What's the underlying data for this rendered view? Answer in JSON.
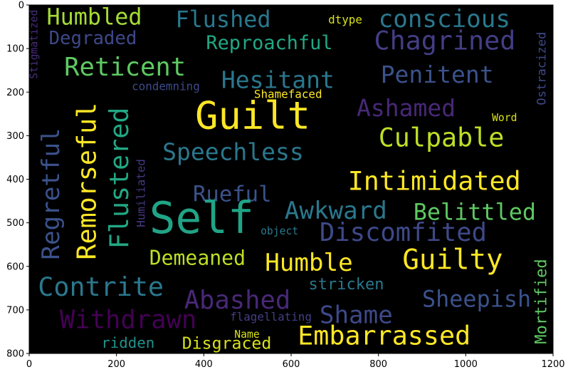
{
  "chart_data": {
    "type": "image",
    "title": "",
    "xlabel": "",
    "ylabel": "",
    "xlim": [
      0,
      1200
    ],
    "ylim": [
      800,
      0
    ],
    "xticks": [
      "0",
      "200",
      "400",
      "600",
      "800",
      "1000",
      "1200"
    ],
    "yticks": [
      "0",
      "100",
      "200",
      "300",
      "400",
      "500",
      "600",
      "700",
      "800"
    ],
    "background_color": "#000000",
    "words": [
      {
        "text": "Humbled",
        "x": 40,
        "y": 7,
        "size": 52,
        "color": "#a5db36",
        "rotate": 0
      },
      {
        "text": "Flushed",
        "x": 335,
        "y": 13,
        "size": 52,
        "color": "#2a788e",
        "rotate": 0
      },
      {
        "text": "dtype",
        "x": 685,
        "y": 23,
        "size": 26,
        "color": "#d8e219",
        "rotate": 0
      },
      {
        "text": "conscious",
        "x": 800,
        "y": 10,
        "size": 56,
        "color": "#2a788e",
        "rotate": 0
      },
      {
        "text": "Degraded",
        "x": 45,
        "y": 60,
        "size": 42,
        "color": "#3e4989",
        "rotate": 0
      },
      {
        "text": "Reproachful",
        "x": 405,
        "y": 70,
        "size": 44,
        "color": "#22a884",
        "rotate": 0
      },
      {
        "text": "Chagrined",
        "x": 790,
        "y": 58,
        "size": 60,
        "color": "#433e85",
        "rotate": 0
      },
      {
        "text": "Stigmatized",
        "x": 2,
        "y": 170,
        "size": 24,
        "color": "#472c7a",
        "rotate": -90
      },
      {
        "text": "Ostracized",
        "x": 1163,
        "y": 230,
        "size": 28,
        "color": "#3e4989",
        "rotate": -90
      },
      {
        "text": "Reticent",
        "x": 80,
        "y": 120,
        "size": 58,
        "color": "#5ec962",
        "rotate": 0
      },
      {
        "text": "Hesitant",
        "x": 440,
        "y": 150,
        "size": 54,
        "color": "#2a788e",
        "rotate": 0
      },
      {
        "text": "Penitent",
        "x": 805,
        "y": 138,
        "size": 54,
        "color": "#3b528b",
        "rotate": 0
      },
      {
        "text": "condemning",
        "x": 235,
        "y": 176,
        "size": 26,
        "color": "#3e4989",
        "rotate": 0
      },
      {
        "text": "Shamefaced",
        "x": 515,
        "y": 194,
        "size": 26,
        "color": "#fde725",
        "rotate": 0
      },
      {
        "text": "Regretful",
        "x": 28,
        "y": 585,
        "size": 56,
        "color": "#3b528b",
        "rotate": -90
      },
      {
        "text": "Remorseful",
        "x": 108,
        "y": 585,
        "size": 60,
        "color": "#fde725",
        "rotate": -90
      },
      {
        "text": "Flustered",
        "x": 182,
        "y": 560,
        "size": 60,
        "color": "#22a884",
        "rotate": -90
      },
      {
        "text": "Humiliated",
        "x": 245,
        "y": 510,
        "size": 26,
        "color": "#443983",
        "rotate": -90
      },
      {
        "text": "Guilt",
        "x": 380,
        "y": 218,
        "size": 88,
        "color": "#fde725",
        "rotate": 0
      },
      {
        "text": "Ashamed",
        "x": 750,
        "y": 215,
        "size": 54,
        "color": "#482878",
        "rotate": 0
      },
      {
        "text": "Word",
        "x": 1060,
        "y": 250,
        "size": 24,
        "color": "#d8e219",
        "rotate": 0
      },
      {
        "text": "Culpable",
        "x": 800,
        "y": 280,
        "size": 60,
        "color": "#bddf26",
        "rotate": 0
      },
      {
        "text": "Speechless",
        "x": 305,
        "y": 315,
        "size": 54,
        "color": "#2a788e",
        "rotate": 0
      },
      {
        "text": "Intimidated",
        "x": 730,
        "y": 380,
        "size": 60,
        "color": "#fde725",
        "rotate": 0
      },
      {
        "text": "Rueful",
        "x": 375,
        "y": 415,
        "size": 50,
        "color": "#3b528b",
        "rotate": 0
      },
      {
        "text": "Awkward",
        "x": 585,
        "y": 450,
        "size": 56,
        "color": "#2a788e",
        "rotate": 0
      },
      {
        "text": "Belittled",
        "x": 880,
        "y": 455,
        "size": 52,
        "color": "#5ec962",
        "rotate": 0
      },
      {
        "text": "Self",
        "x": 275,
        "y": 450,
        "size": 100,
        "color": "#20a486",
        "rotate": 0
      },
      {
        "text": "object",
        "x": 530,
        "y": 510,
        "size": 24,
        "color": "#2a788e",
        "rotate": 0
      },
      {
        "text": "Discomfited",
        "x": 665,
        "y": 500,
        "size": 58,
        "color": "#3e4989",
        "rotate": 0
      },
      {
        "text": "Demeaned",
        "x": 275,
        "y": 562,
        "size": 46,
        "color": "#bddf26",
        "rotate": 0
      },
      {
        "text": "Humble",
        "x": 540,
        "y": 570,
        "size": 56,
        "color": "#fde725",
        "rotate": 0
      },
      {
        "text": "Guilty",
        "x": 855,
        "y": 560,
        "size": 64,
        "color": "#fde725",
        "rotate": 0
      },
      {
        "text": "Mortified",
        "x": 1160,
        "y": 778,
        "size": 36,
        "color": "#5ec962",
        "rotate": -90
      },
      {
        "text": "Contrite",
        "x": 20,
        "y": 623,
        "size": 60,
        "color": "#2a788e",
        "rotate": 0
      },
      {
        "text": "stricken",
        "x": 640,
        "y": 628,
        "size": 36,
        "color": "#2a788e",
        "rotate": 0
      },
      {
        "text": "Abashed",
        "x": 355,
        "y": 655,
        "size": 58,
        "color": "#482878",
        "rotate": 0
      },
      {
        "text": "Sheepish",
        "x": 900,
        "y": 655,
        "size": 52,
        "color": "#3b528b",
        "rotate": 0
      },
      {
        "text": "Withdrawn",
        "x": 70,
        "y": 700,
        "size": 58,
        "color": "#440154",
        "rotate": 0
      },
      {
        "text": "flagellating",
        "x": 460,
        "y": 705,
        "size": 26,
        "color": "#433e85",
        "rotate": 0
      },
      {
        "text": "Shame",
        "x": 665,
        "y": 690,
        "size": 56,
        "color": "#3e4989",
        "rotate": 0
      },
      {
        "text": "Name",
        "x": 470,
        "y": 747,
        "size": 24,
        "color": "#d8e219",
        "rotate": 0
      },
      {
        "text": "ridden",
        "x": 165,
        "y": 762,
        "size": 34,
        "color": "#21918c",
        "rotate": 0
      },
      {
        "text": "Disgraced",
        "x": 350,
        "y": 762,
        "size": 38,
        "color": "#d8e219",
        "rotate": 0
      },
      {
        "text": "Embarrassed",
        "x": 615,
        "y": 735,
        "size": 60,
        "color": "#fde725",
        "rotate": 0
      }
    ]
  }
}
